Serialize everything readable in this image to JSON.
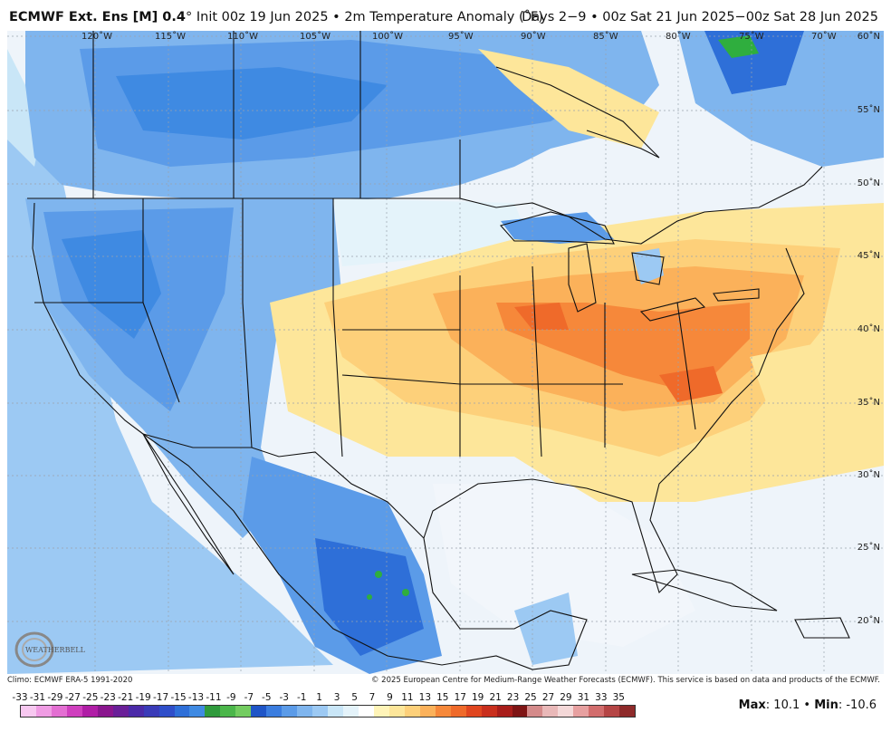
{
  "header": {
    "model": "ECMWF Ext. Ens [M] 0.4",
    "degree": "°",
    "init": "Init 00z 19 Jun 2025",
    "bullet": "•",
    "variable": "2m Temperature Anomaly (˚F)",
    "valid": "Days 2−9 • 00z Sat 21 Jun 2025−00z Sat 28 Jun 2025"
  },
  "map": {
    "longitudes": [
      "120˚W",
      "115˚W",
      "110˚W",
      "105˚W",
      "100˚W",
      "95˚W",
      "90˚W",
      "85˚W",
      "80˚W",
      "75˚W",
      "70˚W"
    ],
    "latitudes": [
      "60˚N",
      "55˚N",
      "50˚N",
      "45˚N",
      "40˚N",
      "35˚N",
      "30˚N",
      "25˚N",
      "20˚N"
    ],
    "logo_text": "WEATHERBELL",
    "colors": {
      "water": "#f2f6fb",
      "cold_strong": "#2e6fd8",
      "cold": "#5b9be8",
      "cool": "#9cc9f3",
      "slight_cool": "#c9e6f7",
      "neutral": "#eef4fa",
      "slight_warm": "#fff4b8",
      "warm": "#fddc8a",
      "hot": "#fbb15a",
      "hotter": "#f6883a",
      "hottest": "#ef6a2a",
      "green": "#2fae3e"
    }
  },
  "footer": {
    "climo": "Climo: ECMWF ERA-5 1991-2020",
    "copyright": "© 2025 European Centre for Medium-Range Weather Forecasts (ECMWF). This service is based on data and products of the ECMWF."
  },
  "legend": {
    "ticks": [
      "-33",
      "-31",
      "-29",
      "-27",
      "-25",
      "-23",
      "-21",
      "-19",
      "-17",
      "-15",
      "-13",
      "-11",
      "-9",
      "-7",
      "-5",
      "-3",
      "-1",
      "1",
      "3",
      "5",
      "7",
      "9",
      "11",
      "13",
      "15",
      "17",
      "19",
      "21",
      "23",
      "25",
      "27",
      "29",
      "31",
      "33",
      "35"
    ],
    "colors": [
      "#f7c8f0",
      "#ef9ce3",
      "#e36fd2",
      "#cf3fbe",
      "#b01ea6",
      "#8a168e",
      "#6a1f98",
      "#4b2aa8",
      "#3a3bb8",
      "#2f4ec9",
      "#2e6fd8",
      "#3f8ae2",
      "#2f9a3c",
      "#4bb64a",
      "#73cc60",
      "#1f55c7",
      "#3b7ddf",
      "#5b9be8",
      "#7fb5ee",
      "#9cc9f3",
      "#c9e6f7",
      "#e4f3fa",
      "#ffffff",
      "#fff4b8",
      "#fde69a",
      "#fdd07a",
      "#fbb15a",
      "#f6883a",
      "#ef6a2a",
      "#e0461f",
      "#c92f1d",
      "#a81d1a",
      "#7e1414",
      "#d48a8a",
      "#e9b8b8",
      "#f4d8d8",
      "#e7a0a0",
      "#d26d6d",
      "#b54545",
      "#8e2a2a"
    ],
    "max_label": "Max",
    "max_value": ": 10.1",
    "sep": " • ",
    "min_label": "Min",
    "min_value": ": -10.6"
  }
}
